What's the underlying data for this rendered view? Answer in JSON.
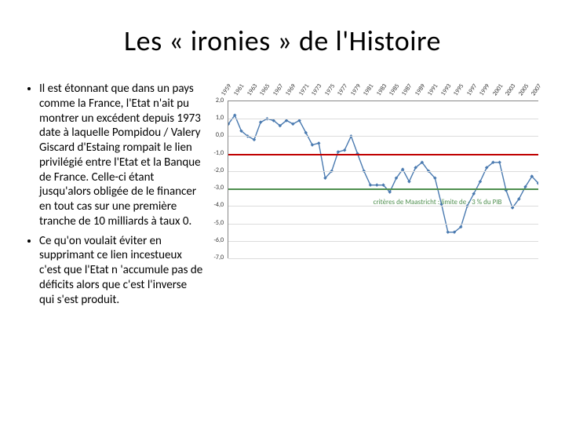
{
  "title": "Les « ironies » de l'Histoire",
  "bullets": {
    "b1": "Il est étonnant que dans un pays comme la France, l'Etat n'ait pu montrer un excédent depuis 1973 date à laquelle Pompidou / Valery Giscard d'Estaing rompait le lien privilégié entre l'Etat et la Banque de France. Celle-ci étant jusqu'alors obligée de le financer en tout cas sur une première tranche de 10 milliards à taux 0.",
    "b2": "Ce qu'on voulait éviter en supprimant ce lien incestueux c'est que l'Etat n 'accumule pas de déficits alors que c'est l'inverse qui s'est produit."
  },
  "chart": {
    "type": "line",
    "x_years": [
      1959,
      1961,
      1963,
      1965,
      1967,
      1969,
      1971,
      1973,
      1975,
      1977,
      1979,
      1981,
      1983,
      1985,
      1987,
      1989,
      1991,
      1993,
      1995,
      1997,
      1999,
      2001,
      2003,
      2005,
      2007
    ],
    "y_ticks": [
      2.0,
      1.0,
      0.0,
      -1.0,
      -2.0,
      -3.0,
      -4.0,
      -5.0,
      -6.0,
      -7.0
    ],
    "ylim": [
      -7.0,
      2.0
    ],
    "series_color": "#4a7ab0",
    "series_width": 1.4,
    "values": [
      0.7,
      1.2,
      0.3,
      0.0,
      -0.2,
      0.8,
      1.0,
      0.9,
      0.6,
      0.9,
      0.7,
      0.9,
      0.2,
      -0.5,
      -0.4,
      -2.4,
      -2.0,
      -0.9,
      -0.8,
      0.0,
      -1.0,
      -2.0,
      -2.8,
      -2.8,
      -2.8,
      -3.2,
      -2.4,
      -1.9,
      -2.6,
      -1.8,
      -1.5,
      -2.0,
      -2.4,
      -3.9,
      -5.5,
      -5.5,
      -5.2,
      -4.0,
      -3.3,
      -2.6,
      -1.8,
      -1.5,
      -1.5,
      -3.1,
      -4.1,
      -3.6,
      -2.9,
      -2.3,
      -2.7
    ],
    "ref_lines": {
      "red_value": -1.0,
      "red_color": "#c00000",
      "green_value": -3.0,
      "green_color": "#4f8f4f"
    },
    "legend_text": "critères de Maastricht : limite de - 3 % du PIB",
    "background_color": "#ffffff",
    "grid_color": "#dcdcdc",
    "axis_color": "#888888",
    "label_fontsize": 8
  }
}
